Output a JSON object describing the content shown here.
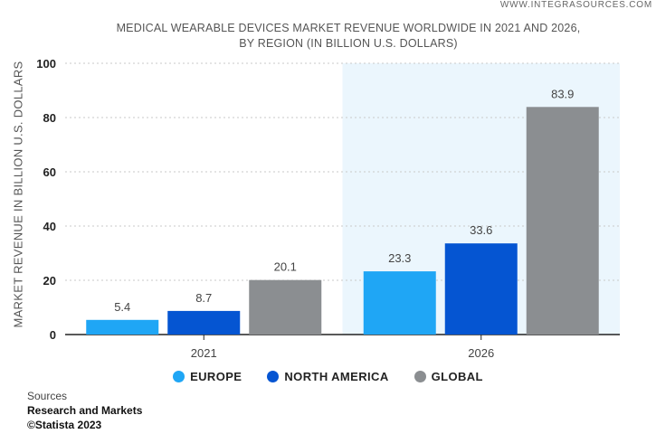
{
  "watermark": "WWW.INTEGRASOURCES.COM",
  "chart_data": {
    "type": "bar",
    "title": "MEDICAL WEARABLE DEVICES MARKET REVENUE WORLDWIDE IN 2021 AND 2026,\nBY REGION (IN BILLION U.S. DOLLARS)",
    "ylabel": "MARKET REVENUE IN BILLION U.S. DOLLARS",
    "xlabel": "",
    "categories": [
      "2021",
      "2026"
    ],
    "series": [
      {
        "name": "EUROPE",
        "color": "#1fa6f5",
        "values": [
          5.4,
          23.3
        ],
        "labels": [
          "5.4",
          "23.3"
        ]
      },
      {
        "name": "NORTH AMERICA",
        "color": "#0555d2",
        "values": [
          8.7,
          33.6
        ],
        "labels": [
          "8.7",
          "33.6"
        ]
      },
      {
        "name": "GLOBAL",
        "color": "#8b8e91",
        "values": [
          20.1,
          83.9
        ],
        "labels": [
          "20.1",
          "83.9"
        ]
      }
    ],
    "ylim": [
      0,
      100
    ],
    "yticks": [
      "0",
      "20",
      "40",
      "60",
      "80",
      "100"
    ],
    "grid": true,
    "highlighted_category": "2026",
    "legend_position": "bottom"
  },
  "sources": {
    "label": "Sources",
    "name": "Research and Markets",
    "copyright": "©Statista 2023"
  }
}
